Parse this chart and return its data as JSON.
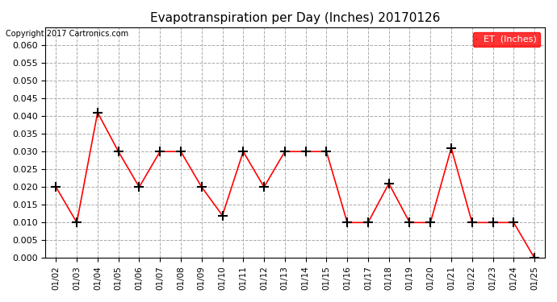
{
  "title": "Evapotranspiration per Day (Inches) 20170126",
  "copyright": "Copyright 2017 Cartronics.com",
  "legend_label": "ET  (Inches)",
  "dates": [
    "01/02",
    "01/03",
    "01/04",
    "01/05",
    "01/06",
    "01/07",
    "01/08",
    "01/09",
    "01/10",
    "01/11",
    "01/12",
    "01/13",
    "01/14",
    "01/15",
    "01/16",
    "01/17",
    "01/18",
    "01/19",
    "01/20",
    "01/21",
    "01/22",
    "01/23",
    "01/24",
    "01/25"
  ],
  "values": [
    0.02,
    0.01,
    0.041,
    0.03,
    0.02,
    0.03,
    0.03,
    0.02,
    0.012,
    0.03,
    0.02,
    0.03,
    0.03,
    0.03,
    0.01,
    0.01,
    0.021,
    0.01,
    0.01,
    0.031,
    0.01,
    0.01,
    0.01,
    0.0
  ],
  "ylim": [
    0,
    0.065
  ],
  "yticks": [
    0.0,
    0.005,
    0.01,
    0.015,
    0.02,
    0.025,
    0.03,
    0.035,
    0.04,
    0.045,
    0.05,
    0.055,
    0.06
  ],
  "line_color": "red",
  "marker": "+",
  "marker_color": "black",
  "grid_color": "#aaaaaa",
  "background_color": "white",
  "legend_bg": "red",
  "legend_text_color": "white"
}
